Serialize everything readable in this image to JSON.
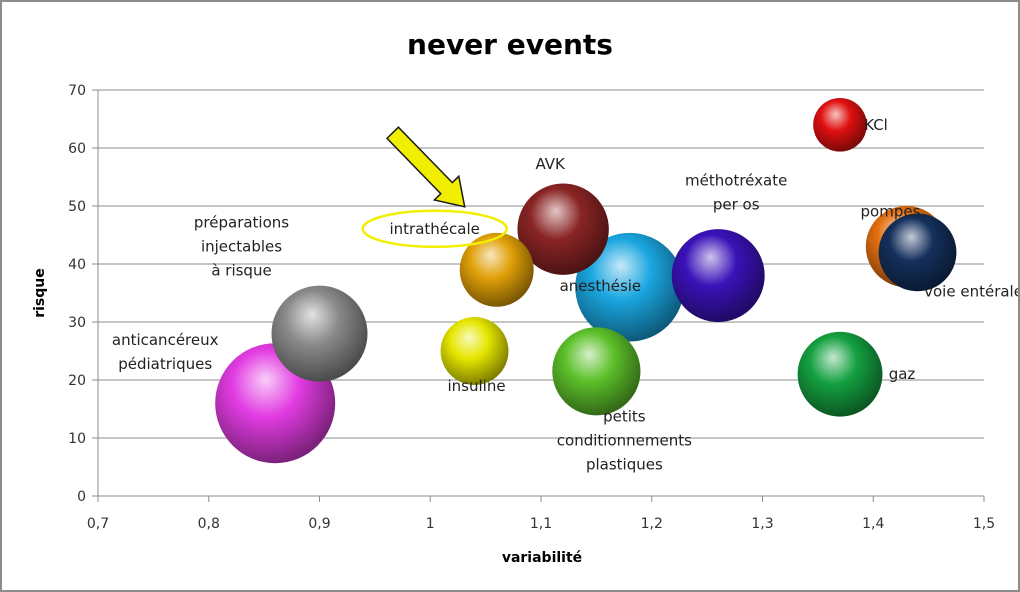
{
  "chart_data": {
    "type": "bubble",
    "title": "never events",
    "xlabel": "variabilité",
    "ylabel": "risque",
    "xlim": [
      0.7,
      1.5
    ],
    "ylim": [
      0,
      70
    ],
    "x_ticks": [
      "0,7",
      "0,8",
      "0,9",
      "1",
      "1,1",
      "1,2",
      "1,3",
      "1,4",
      "1,5"
    ],
    "y_ticks": [
      "0",
      "10",
      "20",
      "30",
      "40",
      "50",
      "60",
      "70"
    ],
    "grid": "horizontal",
    "legend": "none",
    "annotation": {
      "type": "arrow",
      "target": "intrathécale",
      "color": "#f2ee00",
      "highlight": "ellipse"
    },
    "points": [
      {
        "label": "anticancéreux\npédiatriques",
        "x": 0.86,
        "y": 16,
        "size": 1.0,
        "color": "#e23ce2"
      },
      {
        "label": "préparations\ninjectables\nà risque",
        "x": 0.9,
        "y": 28,
        "size": 0.64,
        "color": "#8a8a8a"
      },
      {
        "label": "intrathécale",
        "x": 1.06,
        "y": 39,
        "size": 0.38,
        "color": "#e0a008"
      },
      {
        "label": "insuline",
        "x": 1.04,
        "y": 25,
        "size": 0.32,
        "color": "#e6e600"
      },
      {
        "label": "AVK",
        "x": 1.12,
        "y": 46,
        "size": 0.58,
        "color": "#8a2424"
      },
      {
        "label": "anesthésie",
        "x": 1.18,
        "y": 36,
        "size": 0.82,
        "color": "#1aa6e0"
      },
      {
        "label": "petits\nconditionnements\nplastiques",
        "x": 1.15,
        "y": 21.5,
        "size": 0.54,
        "color": "#5cc02a"
      },
      {
        "label": "méthotréxate\nper os",
        "x": 1.26,
        "y": 38,
        "size": 0.6,
        "color": "#3a12b8"
      },
      {
        "label": "KCl",
        "x": 1.37,
        "y": 64,
        "size": 0.2,
        "color": "#e01010"
      },
      {
        "label": "voie entérale",
        "x": 1.44,
        "y": 42,
        "size": 0.42,
        "color": "#14305c"
      },
      {
        "label": "pompes",
        "x": 1.43,
        "y": 43,
        "size": 0.46,
        "color": "#e46f10"
      },
      {
        "label": "gaz",
        "x": 1.37,
        "y": 21,
        "size": 0.5,
        "color": "#14a040"
      }
    ]
  }
}
